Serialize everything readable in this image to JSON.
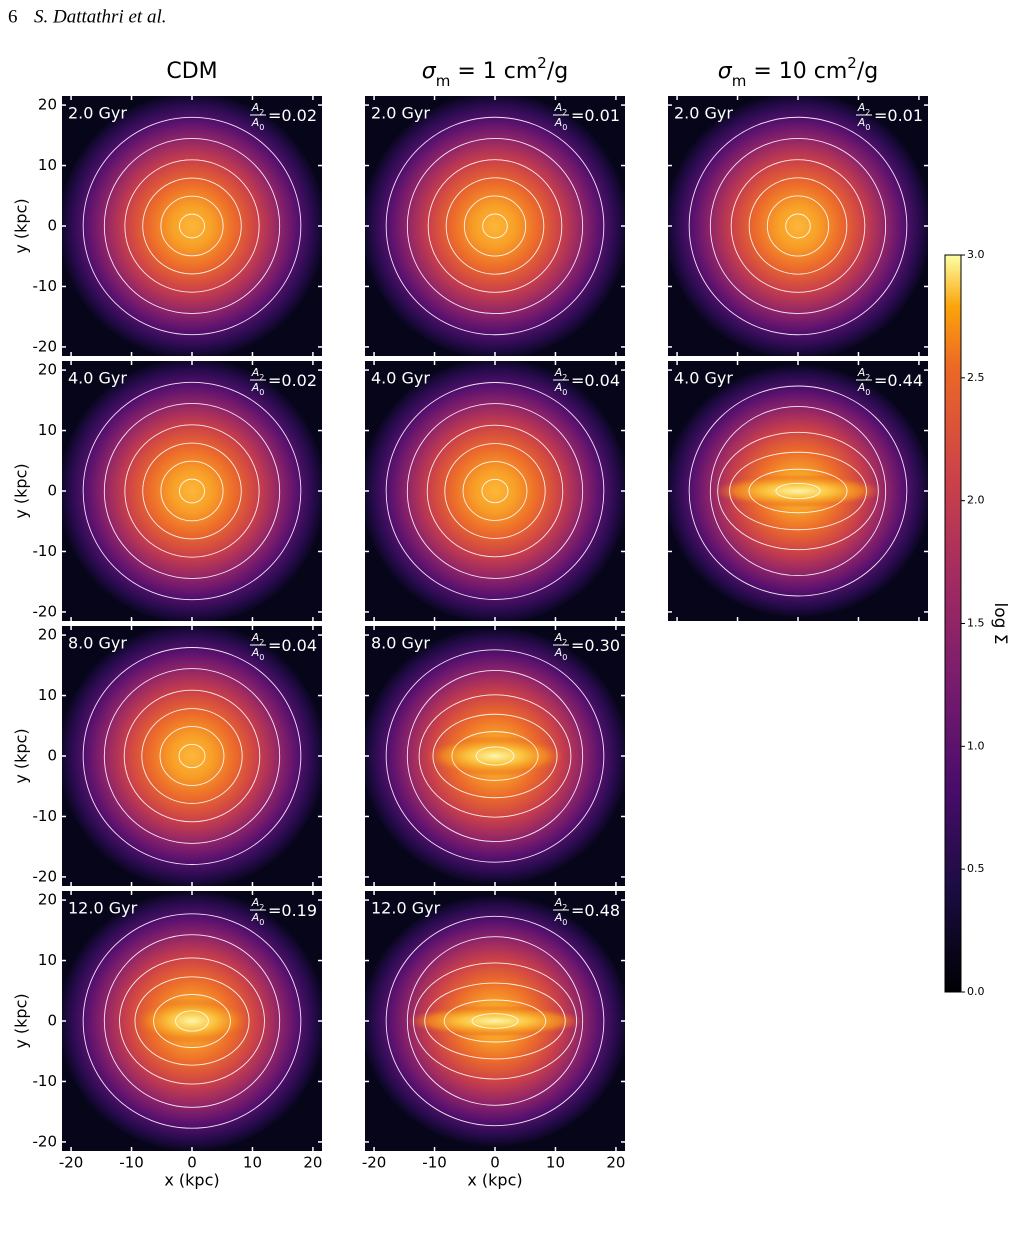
{
  "header": {
    "page": "6",
    "authors": "S. Dattathri et al."
  },
  "figure": {
    "axes": {
      "xlim": [
        -21.5,
        21.5
      ],
      "ylim": [
        -21.5,
        21.5
      ],
      "xticks": [
        -20,
        -10,
        0,
        10,
        20
      ],
      "yticks": [
        -20,
        -10,
        0,
        10,
        20
      ],
      "xlabel": "x (kpc)",
      "ylabel": "y (kpc)"
    },
    "ratio_label": {
      "num": "A",
      "num_sub": "2",
      "den": "A",
      "den_sub": "0",
      "eq": "="
    },
    "columns": [
      {
        "title": [
          {
            "text": "CDM",
            "style": "normal"
          }
        ],
        "panels": [
          {
            "time": "2.0 Gyr",
            "a2_a0": 0.02
          },
          {
            "time": "4.0 Gyr",
            "a2_a0": 0.02
          },
          {
            "time": "8.0 Gyr",
            "a2_a0": 0.04
          },
          {
            "time": "12.0 Gyr",
            "a2_a0": 0.19
          }
        ]
      },
      {
        "title": [
          {
            "text": "σ",
            "style": "italic"
          },
          {
            "text": "m",
            "style": "sub"
          },
          {
            "text": " = 1 cm",
            "style": "normal"
          },
          {
            "text": "2",
            "style": "sup"
          },
          {
            "text": "/g",
            "style": "normal"
          }
        ],
        "panels": [
          {
            "time": "2.0 Gyr",
            "a2_a0": 0.01
          },
          {
            "time": "4.0 Gyr",
            "a2_a0": 0.04
          },
          {
            "time": "8.0 Gyr",
            "a2_a0": 0.3,
            "a2_a0_label": "0.30"
          },
          {
            "time": "12.0 Gyr",
            "a2_a0": 0.48
          }
        ]
      },
      {
        "title": [
          {
            "text": "σ",
            "style": "italic"
          },
          {
            "text": "m",
            "style": "sub"
          },
          {
            "text": " = 10 cm",
            "style": "normal"
          },
          {
            "text": "2",
            "style": "sup"
          },
          {
            "text": "/g",
            "style": "normal"
          }
        ],
        "panels": [
          {
            "time": "2.0 Gyr",
            "a2_a0": 0.01
          },
          {
            "time": "4.0 Gyr",
            "a2_a0": 0.44
          }
        ]
      }
    ],
    "colorbar": {
      "label": "log Σ",
      "lim": [
        0,
        3
      ],
      "ticks": [
        {
          "value": 0,
          "label": "0.0"
        },
        {
          "value": 0.5,
          "label": "0.5"
        },
        {
          "value": 1,
          "label": "1.0"
        },
        {
          "value": 1.5,
          "label": "1.5"
        },
        {
          "value": 2,
          "label": "2.0"
        },
        {
          "value": 2.5,
          "label": "2.5"
        },
        {
          "value": 3,
          "label": "3.0"
        }
      ]
    }
  }
}
